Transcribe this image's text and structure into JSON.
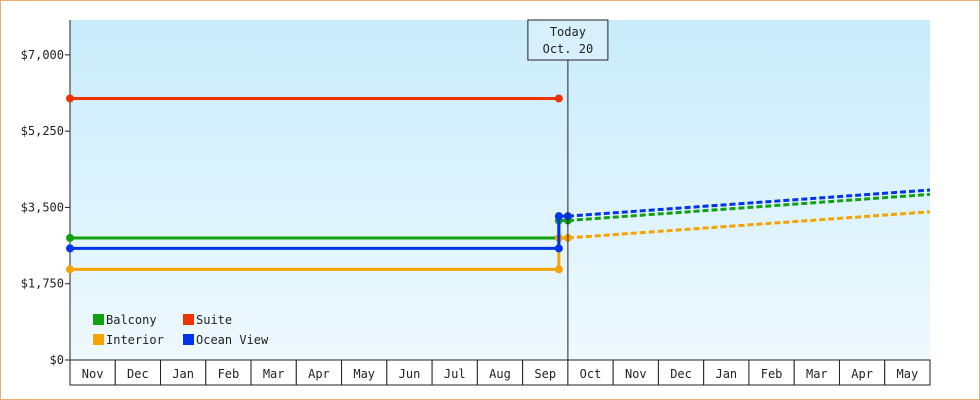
{
  "chart_data": {
    "type": "line",
    "categories": [
      "Nov",
      "Dec",
      "Jan",
      "Feb",
      "Mar",
      "Apr",
      "May",
      "Jun",
      "Jul",
      "Aug",
      "Sep",
      "Oct",
      "Nov",
      "Dec",
      "Jan",
      "Feb",
      "Mar",
      "Apr",
      "May"
    ],
    "y_ticks": [
      "$0",
      "$1,750",
      "$3,500",
      "$5,250",
      "$7,000"
    ],
    "ylim": [
      0,
      7800
    ],
    "y_tick_values": [
      0,
      1750,
      3500,
      5250,
      7000
    ],
    "grid": false,
    "legend_position": "bottom-left",
    "today_marker": {
      "line1": "Today",
      "line2": "Oct. 20",
      "x": 11.0
    },
    "series": [
      {
        "name": "Balcony",
        "color": "#11a011",
        "points": [
          [
            0,
            2800
          ],
          [
            10.8,
            2800
          ],
          [
            10.8,
            3200
          ],
          [
            11.0,
            3200
          ]
        ],
        "projection": [
          [
            11.0,
            3200
          ],
          [
            19.0,
            3800
          ]
        ]
      },
      {
        "name": "Suite",
        "color": "#ee3300",
        "points": [
          [
            0,
            6000
          ],
          [
            10.8,
            6000
          ]
        ],
        "projection": []
      },
      {
        "name": "Interior",
        "color": "#f5a300",
        "points": [
          [
            0,
            2080
          ],
          [
            10.8,
            2080
          ],
          [
            10.8,
            2800
          ],
          [
            11.0,
            2800
          ]
        ],
        "projection": [
          [
            11.0,
            2800
          ],
          [
            19.0,
            3400
          ]
        ]
      },
      {
        "name": "Ocean View",
        "color": "#0033ee",
        "points": [
          [
            0,
            2560
          ],
          [
            10.8,
            2560
          ],
          [
            10.8,
            3300
          ],
          [
            11.0,
            3300
          ]
        ],
        "projection": [
          [
            11.0,
            3300
          ],
          [
            19.0,
            3900
          ]
        ]
      }
    ]
  }
}
